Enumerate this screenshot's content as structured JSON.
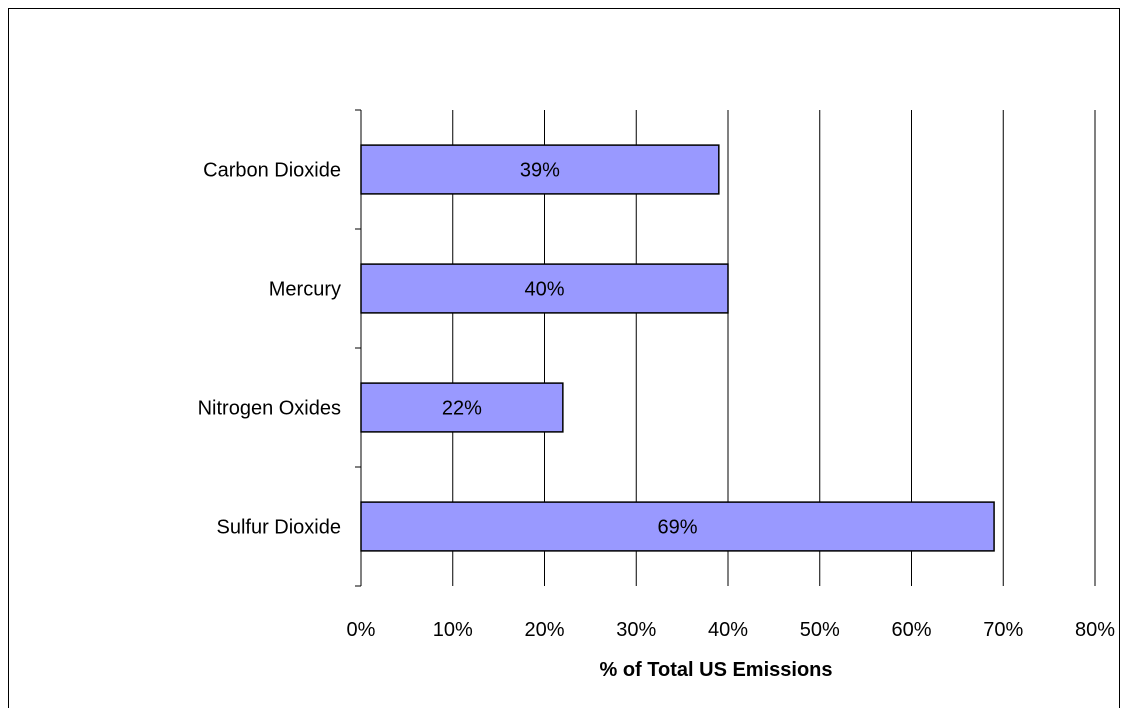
{
  "chart_data": {
    "type": "bar",
    "orientation": "horizontal",
    "categories": [
      "Carbon Dioxide",
      "Mercury",
      "Nitrogen Oxides",
      "Sulfur Dioxide"
    ],
    "values": [
      39,
      40,
      22,
      69
    ],
    "data_labels": [
      "39%",
      "40%",
      "22%",
      "69%"
    ],
    "xlabel": "% of Total US Emissions",
    "ylabel": "",
    "xlim": [
      0,
      80
    ],
    "x_ticks": [
      0,
      10,
      20,
      30,
      40,
      50,
      60,
      70,
      80
    ],
    "x_tick_labels": [
      "0%",
      "10%",
      "20%",
      "30%",
      "40%",
      "50%",
      "60%",
      "70%",
      "80%"
    ],
    "grid": "vertical",
    "legend": "none",
    "bar_color": "#9999ff",
    "bar_border_color": "#000000"
  }
}
